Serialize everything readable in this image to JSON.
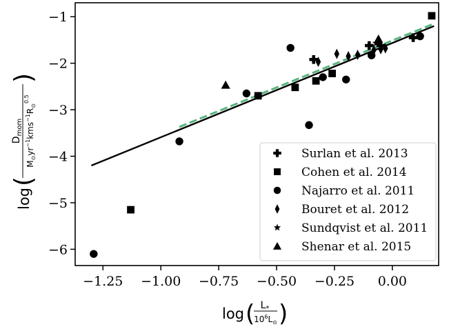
{
  "chart_data": {
    "type": "scatter",
    "title": "",
    "xlabel": "log(L*/10^6 L☉)",
    "ylabel": "log(D_mom / M☉ yr⁻¹ km s⁻¹ R☉^0.5)",
    "xlim": [
      -1.37,
      0.2
    ],
    "ylim": [
      -6.35,
      -0.7
    ],
    "x_ticks": [
      -1.25,
      -1.0,
      -0.75,
      -0.5,
      -0.25,
      0.0
    ],
    "x_tick_labels": [
      "−1.25",
      "−1.00",
      "−0.75",
      "−0.50",
      "−0.25",
      "0.00"
    ],
    "y_ticks": [
      -6,
      -5,
      -4,
      -3,
      -2,
      -1
    ],
    "y_tick_labels": [
      "−6",
      "−5",
      "−4",
      "−3",
      "−2",
      "−1"
    ],
    "grid": false,
    "legend_position": "lower-right",
    "series": [
      {
        "name": "Surlan et al. 2013",
        "marker": "plus",
        "points": [
          [
            -0.34,
            -1.92
          ],
          [
            -0.1,
            -1.62
          ],
          [
            -0.05,
            -1.62
          ],
          [
            0.09,
            -1.45
          ]
        ]
      },
      {
        "name": "Cohen et al. 2014",
        "marker": "square",
        "points": [
          [
            -1.13,
            -5.15
          ],
          [
            -0.58,
            -2.7
          ],
          [
            -0.42,
            -2.52
          ],
          [
            -0.33,
            -2.38
          ],
          [
            -0.26,
            -2.22
          ],
          [
            0.17,
            -0.98
          ]
        ]
      },
      {
        "name": "Najarro et al. 2011",
        "marker": "circle",
        "points": [
          [
            -1.29,
            -6.1
          ],
          [
            -0.92,
            -3.68
          ],
          [
            -0.63,
            -2.65
          ],
          [
            -0.44,
            -1.67
          ],
          [
            -0.36,
            -3.33
          ],
          [
            -0.3,
            -2.3
          ],
          [
            -0.2,
            -2.35
          ],
          [
            -0.09,
            -1.83
          ],
          [
            0.12,
            -1.42
          ]
        ]
      },
      {
        "name": "Bouret et al. 2012",
        "marker": "diamond",
        "points": [
          [
            -0.32,
            -1.97
          ],
          [
            -0.24,
            -1.8
          ],
          [
            -0.19,
            -1.85
          ],
          [
            -0.15,
            -1.82
          ],
          [
            -0.08,
            -1.72
          ],
          [
            -0.06,
            -1.52
          ],
          [
            -0.05,
            -1.7
          ],
          [
            -0.03,
            -1.68
          ]
        ]
      },
      {
        "name": "Sundqvist et al. 2011",
        "marker": "star",
        "points": [
          [
            -0.07,
            -1.57
          ]
        ]
      },
      {
        "name": "Shenar et al. 2015",
        "marker": "triangle",
        "points": [
          [
            -0.72,
            -2.47
          ],
          [
            -0.06,
            -1.48
          ]
        ]
      }
    ],
    "fits": [
      {
        "style": "solid",
        "color": "#000000",
        "points": [
          [
            -1.3,
            -4.2
          ],
          [
            0.18,
            -1.2
          ]
        ]
      },
      {
        "style": "dashed",
        "color": "#55b57c",
        "points": [
          [
            -0.92,
            -3.37
          ],
          [
            0.17,
            -1.17
          ]
        ]
      }
    ]
  }
}
